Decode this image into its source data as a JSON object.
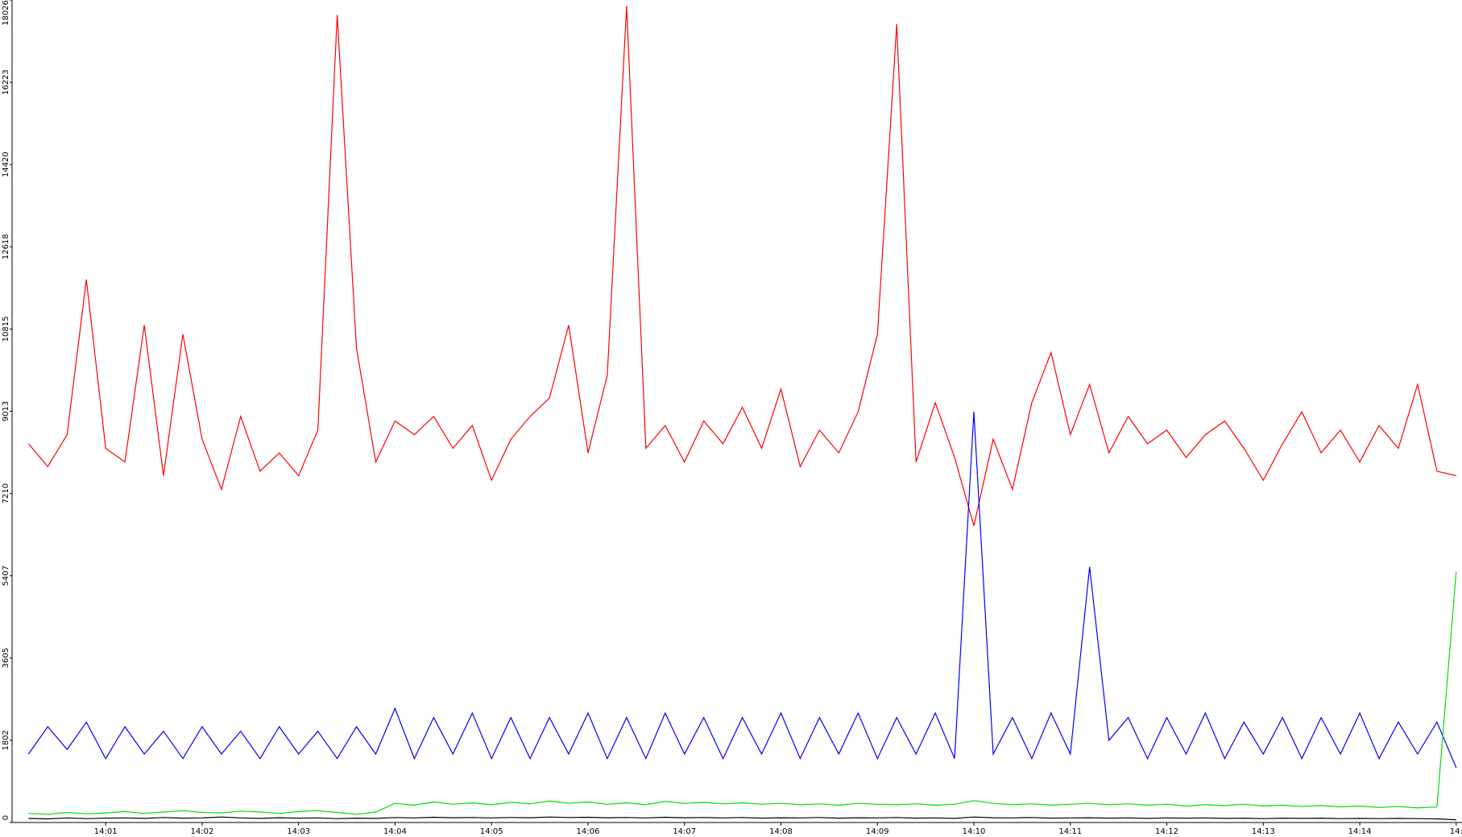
{
  "chart_data": {
    "type": "line",
    "x": [
      0.2,
      0.4,
      0.6,
      0.8,
      1.0,
      1.2,
      1.4,
      1.6,
      1.8,
      2.0,
      2.2,
      2.4,
      2.6,
      2.8,
      3.0,
      3.2,
      3.4,
      3.6,
      3.8,
      4.0,
      4.2,
      4.4,
      4.6,
      4.8,
      5.0,
      5.2,
      5.4,
      5.6,
      5.8,
      6.0,
      6.2,
      6.4,
      6.6,
      6.8,
      7.0,
      7.2,
      7.4,
      7.6,
      7.8,
      8.0,
      8.2,
      8.4,
      8.6,
      8.8,
      9.0,
      9.2,
      9.4,
      9.6,
      9.8,
      10.0,
      10.2,
      10.4,
      10.6,
      10.8,
      11.0,
      11.2,
      11.4,
      11.6,
      11.8,
      12.0,
      12.2,
      12.4,
      12.6,
      12.8,
      13.0,
      13.2,
      13.4,
      13.6,
      13.8,
      14.0,
      14.2,
      14.4,
      14.6,
      14.8,
      15.0
    ],
    "series": [
      {
        "color": "#ff0000",
        "values": [
          8300,
          7800,
          8500,
          11900,
          8200,
          7900,
          10900,
          7600,
          10700,
          8400,
          7300,
          8900,
          7700,
          8100,
          7600,
          8600,
          17700,
          10400,
          7900,
          8800,
          8500,
          8900,
          8200,
          8700,
          7500,
          8400,
          8900,
          9300,
          10900,
          8100,
          9800,
          17900,
          8200,
          8700,
          7900,
          8800,
          8300,
          9100,
          8200,
          9500,
          7800,
          8600,
          8100,
          9000,
          10700,
          17500,
          7900,
          9200,
          8000,
          6500,
          8400,
          7300,
          9200,
          10300,
          8500,
          9600,
          8100,
          8900,
          8300,
          8600,
          8000,
          8500,
          8800,
          8200,
          7500,
          8300,
          9000,
          8100,
          8600,
          7900,
          8700,
          8200,
          9600,
          7700,
          7600
        ]
      },
      {
        "color": "#0000ff",
        "values": [
          1500,
          2100,
          1600,
          2200,
          1400,
          2100,
          1500,
          2000,
          1400,
          2100,
          1500,
          2000,
          1400,
          2100,
          1500,
          2000,
          1400,
          2100,
          1500,
          2500,
          1400,
          2300,
          1500,
          2400,
          1400,
          2300,
          1400,
          2300,
          1500,
          2400,
          1400,
          2300,
          1400,
          2400,
          1500,
          2300,
          1400,
          2300,
          1500,
          2400,
          1400,
          2300,
          1500,
          2400,
          1400,
          2300,
          1500,
          2400,
          1400,
          9000,
          1500,
          2300,
          1400,
          2400,
          1500,
          5600,
          1800,
          2300,
          1400,
          2300,
          1500,
          2400,
          1400,
          2200,
          1500,
          2300,
          1400,
          2300,
          1500,
          2400,
          1400,
          2200,
          1500,
          2200,
          1200
        ]
      },
      {
        "color": "#00dd00",
        "values": [
          200,
          180,
          220,
          190,
          210,
          240,
          200,
          230,
          260,
          220,
          210,
          250,
          230,
          200,
          240,
          260,
          220,
          180,
          230,
          420,
          380,
          450,
          400,
          430,
          390,
          440,
          410,
          470,
          420,
          450,
          400,
          430,
          390,
          460,
          420,
          440,
          410,
          430,
          400,
          420,
          390,
          410,
          380,
          420,
          400,
          390,
          410,
          380,
          400,
          480,
          420,
          390,
          410,
          380,
          400,
          420,
          390,
          410,
          380,
          400,
          360,
          390,
          370,
          400,
          360,
          380,
          350,
          370,
          340,
          360,
          330,
          350,
          320,
          340,
          5500
        ]
      },
      {
        "color": "#000000",
        "values": [
          90,
          80,
          100,
          85,
          95,
          100,
          90,
          110,
          95,
          100,
          120,
          100,
          90,
          105,
          95,
          100,
          85,
          95,
          90,
          110,
          100,
          115,
          105,
          110,
          100,
          110,
          105,
          120,
          110,
          115,
          105,
          110,
          100,
          115,
          105,
          110,
          100,
          110,
          95,
          105,
          100,
          110,
          95,
          105,
          100,
          110,
          95,
          100,
          90,
          120,
          105,
          100,
          110,
          95,
          100,
          105,
          95,
          100,
          90,
          100,
          95,
          100,
          90,
          95,
          85,
          95,
          90,
          95,
          85,
          90,
          85,
          90,
          85,
          80,
          60
        ]
      }
    ],
    "xlim": [
      0.03,
      15.06
    ],
    "xticks": [
      {
        "value": 1,
        "label": "14:01"
      },
      {
        "value": 2,
        "label": "14:02"
      },
      {
        "value": 3,
        "label": "14:03"
      },
      {
        "value": 4,
        "label": "14:04"
      },
      {
        "value": 5,
        "label": "14:05"
      },
      {
        "value": 6,
        "label": "14:06"
      },
      {
        "value": 7,
        "label": "14:07"
      },
      {
        "value": 8,
        "label": "14:08"
      },
      {
        "value": 9,
        "label": "14:09"
      },
      {
        "value": 10,
        "label": "14:10"
      },
      {
        "value": 11,
        "label": "14:11"
      },
      {
        "value": 12,
        "label": "14:12"
      },
      {
        "value": 13,
        "label": "14:13"
      },
      {
        "value": 14,
        "label": "14:14"
      },
      {
        "value": 15,
        "label": "14:"
      }
    ],
    "ylim": [
      0,
      18026
    ],
    "yticks": [
      0,
      1802,
      3605,
      5407,
      7210,
      9013,
      10815,
      12618,
      14420,
      16223,
      18026
    ]
  }
}
